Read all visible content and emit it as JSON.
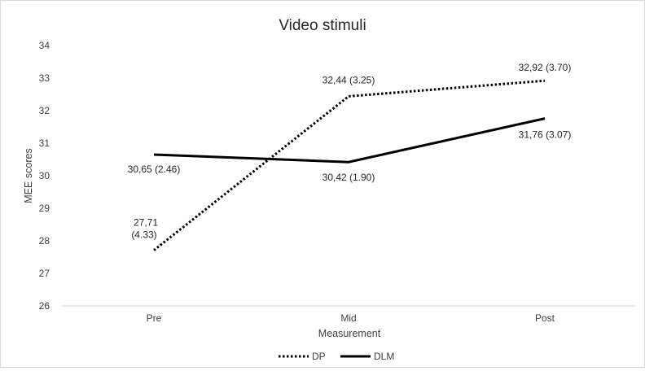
{
  "chart_data": {
    "type": "line",
    "title": "Video stimuli",
    "xlabel": "Measurement",
    "ylabel": "MEE scores",
    "categories": [
      "Pre",
      "Mid",
      "Post"
    ],
    "ylim": [
      26,
      34
    ],
    "yticks": [
      26,
      27,
      28,
      29,
      30,
      31,
      32,
      33,
      34
    ],
    "grid": false,
    "legend_position": "bottom",
    "series": [
      {
        "name": "DP",
        "style": "dotted",
        "color": "#000000",
        "values": [
          27.71,
          32.44,
          32.92
        ],
        "labels": [
          "27,71 (4.33)",
          "32,44 (3.25)",
          "32,92 (3.70)"
        ]
      },
      {
        "name": "DLM",
        "style": "solid",
        "color": "#000000",
        "values": [
          30.65,
          30.42,
          31.76
        ],
        "labels": [
          "30,65 (2.46)",
          "30,42 (1.90)",
          "31,76 (3.07)"
        ]
      }
    ]
  }
}
